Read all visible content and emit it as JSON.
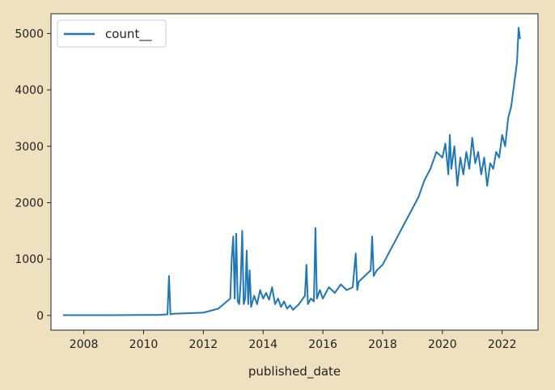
{
  "chart_data": {
    "type": "line",
    "title": "",
    "xlabel": "published_date",
    "ylabel": "",
    "xlim": [
      2006.9,
      2023.2
    ],
    "ylim": [
      -260,
      5350
    ],
    "grid": false,
    "legend": {
      "placement": "top-left",
      "entries": [
        "count__"
      ]
    },
    "xticks": [
      2008,
      2010,
      2012,
      2014,
      2016,
      2018,
      2020,
      2022
    ],
    "xtick_labels": [
      "2008",
      "2010",
      "2012",
      "2014",
      "2016",
      "2018",
      "2020",
      "2022"
    ],
    "yticks": [
      0,
      1000,
      2000,
      3000,
      4000,
      5000
    ],
    "ytick_labels": [
      "0",
      "1000",
      "2000",
      "3000",
      "4000",
      "5000"
    ],
    "colors": {
      "line": "#1f77b4",
      "background": "#efe0bf",
      "plot_area": "#ffffff",
      "axes": "#222222"
    },
    "series": [
      {
        "name": "count__",
        "x": [
          2007.3,
          2008.0,
          2009.0,
          2010.0,
          2010.5,
          2010.8,
          2010.85,
          2010.9,
          2011.0,
          2011.5,
          2012.0,
          2012.5,
          2012.9,
          2012.95,
          2013.0,
          2013.05,
          2013.1,
          2013.15,
          2013.2,
          2013.25,
          2013.3,
          2013.35,
          2013.4,
          2013.45,
          2013.5,
          2013.55,
          2013.6,
          2013.7,
          2013.8,
          2013.9,
          2014.0,
          2014.1,
          2014.2,
          2014.3,
          2014.4,
          2014.5,
          2014.6,
          2014.7,
          2014.8,
          2014.9,
          2015.0,
          2015.2,
          2015.4,
          2015.45,
          2015.5,
          2015.6,
          2015.7,
          2015.75,
          2015.8,
          2015.9,
          2016.0,
          2016.2,
          2016.4,
          2016.6,
          2016.8,
          2017.0,
          2017.1,
          2017.15,
          2017.2,
          2017.4,
          2017.6,
          2017.65,
          2017.7,
          2017.8,
          2018.0,
          2018.2,
          2018.4,
          2018.6,
          2018.8,
          2019.0,
          2019.2,
          2019.4,
          2019.6,
          2019.8,
          2020.0,
          2020.1,
          2020.2,
          2020.25,
          2020.3,
          2020.4,
          2020.5,
          2020.6,
          2020.7,
          2020.8,
          2020.9,
          2021.0,
          2021.1,
          2021.2,
          2021.3,
          2021.4,
          2021.5,
          2021.6,
          2021.7,
          2021.8,
          2021.9,
          2022.0,
          2022.1,
          2022.2,
          2022.3,
          2022.4,
          2022.5,
          2022.55,
          2022.6
        ],
        "values": [
          5,
          5,
          5,
          10,
          10,
          20,
          700,
          20,
          30,
          40,
          50,
          120,
          300,
          1000,
          1400,
          300,
          1450,
          250,
          200,
          600,
          1500,
          200,
          300,
          1150,
          200,
          800,
          150,
          350,
          200,
          450,
          300,
          400,
          280,
          500,
          200,
          300,
          150,
          250,
          120,
          180,
          100,
          200,
          350,
          900,
          200,
          300,
          250,
          1550,
          300,
          450,
          300,
          500,
          400,
          550,
          450,
          500,
          1100,
          450,
          600,
          700,
          800,
          1400,
          700,
          800,
          900,
          1100,
          1300,
          1500,
          1700,
          1900,
          2100,
          2400,
          2600,
          2900,
          2800,
          3050,
          2500,
          3200,
          2600,
          3000,
          2300,
          2800,
          2500,
          2900,
          2600,
          3150,
          2700,
          2900,
          2500,
          2800,
          2300,
          2700,
          2600,
          2900,
          2800,
          3200,
          3000,
          3500,
          3700,
          4100,
          4500,
          5100,
          4900
        ]
      }
    ]
  }
}
